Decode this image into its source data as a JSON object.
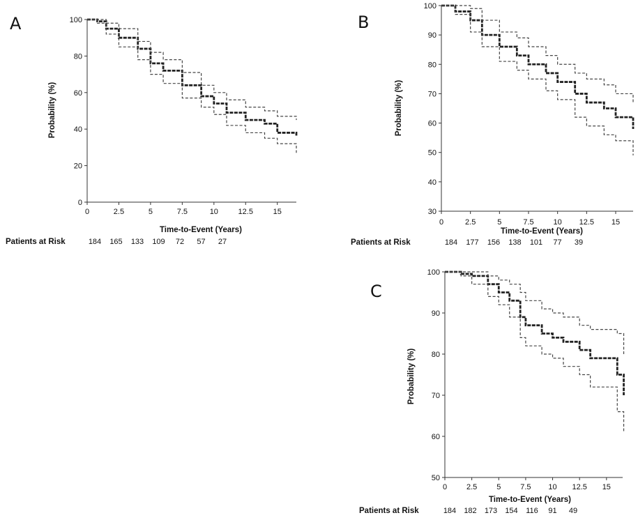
{
  "figure": {
    "risk_label": "Patients at Risk",
    "xlabel": "Time-to-Event (Years)",
    "ylabel": "Probability (%)"
  },
  "chart_data": [
    {
      "panel": "A",
      "type": "line",
      "xlim": [
        0,
        16.5
      ],
      "ylim": [
        0,
        100
      ],
      "xticks": [
        0,
        2.5,
        5,
        7.5,
        10,
        12.5,
        15
      ],
      "xtick_labels": [
        "0",
        "2.5",
        "5",
        "7.5",
        "10",
        "12.5",
        "15"
      ],
      "yticks": [
        0,
        20,
        40,
        60,
        80,
        100
      ],
      "ytick_labels": [
        "0",
        "20",
        "40",
        "60",
        "80",
        "100"
      ],
      "xlabel": "Time-to-Event (Years)",
      "ylabel": "Probability (%)",
      "risk_label": "Patients at Risk",
      "risk_times": [
        0,
        2.5,
        5,
        7.5,
        10,
        12.5,
        15
      ],
      "risk_values": [
        "184",
        "165",
        "133",
        "109",
        "72",
        "57",
        "27"
      ],
      "series": [
        {
          "name": "estimate",
          "x": [
            0,
            0.8,
            1.5,
            2.5,
            4,
            5,
            6,
            7.5,
            9,
            10,
            11,
            12.5,
            14,
            15,
            16.5
          ],
          "values": [
            100,
            99,
            95,
            90,
            84,
            76,
            72,
            64,
            58,
            54,
            49,
            45,
            43,
            38,
            36
          ]
        },
        {
          "name": "upper 95% CI",
          "x": [
            0,
            0.8,
            1.5,
            2.5,
            4,
            5,
            6,
            7.5,
            9,
            10,
            11,
            12.5,
            14,
            15,
            16.5
          ],
          "values": [
            100,
            100,
            98,
            95,
            88,
            82,
            78,
            71,
            64,
            60,
            56,
            52,
            50,
            47,
            45
          ]
        },
        {
          "name": "lower 95% CI",
          "x": [
            0,
            0.8,
            1.5,
            2.5,
            4,
            5,
            6,
            7.5,
            9,
            10,
            11,
            12.5,
            14,
            15,
            16.5
          ],
          "values": [
            100,
            98,
            92,
            85,
            78,
            70,
            65,
            57,
            52,
            48,
            42,
            38,
            35,
            32,
            27
          ]
        }
      ]
    },
    {
      "panel": "B",
      "type": "line",
      "xlim": [
        0,
        16.5
      ],
      "ylim": [
        30,
        100
      ],
      "xticks": [
        0,
        2.5,
        5,
        7.5,
        10,
        12.5,
        15
      ],
      "xtick_labels": [
        "0",
        "2.5",
        "5",
        "7.5",
        "10",
        "12.5",
        "15"
      ],
      "yticks": [
        30,
        40,
        50,
        60,
        70,
        80,
        90,
        100
      ],
      "ytick_labels": [
        "30",
        "40",
        "50",
        "60",
        "70",
        "80",
        "90",
        "100"
      ],
      "xlabel": "Time-to-Event (Years)",
      "ylabel": "Probability (%)",
      "risk_label": "Patients at Risk",
      "risk_times": [
        0,
        2.5,
        5,
        7.5,
        10,
        12.5,
        15
      ],
      "risk_values": [
        "184",
        "177",
        "156",
        "138",
        "101",
        "77",
        "39"
      ],
      "series": [
        {
          "name": "estimate",
          "x": [
            0,
            1.2,
            2.5,
            3.5,
            5,
            6.5,
            7.5,
            9,
            10,
            11.5,
            12.5,
            14,
            15,
            16.5
          ],
          "values": [
            100,
            98,
            95,
            90,
            86,
            83,
            80,
            77,
            74,
            70,
            67,
            65,
            62,
            58
          ]
        },
        {
          "name": "upper 95% CI",
          "x": [
            0,
            1.2,
            2.5,
            3.5,
            5,
            6.5,
            7.5,
            9,
            10,
            11.5,
            12.5,
            14,
            15,
            16.5
          ],
          "values": [
            100,
            100,
            99,
            95,
            91,
            89,
            86,
            83,
            80,
            77,
            75,
            73,
            70,
            67
          ]
        },
        {
          "name": "lower 95% CI",
          "x": [
            0,
            1.2,
            2.5,
            3.5,
            5,
            6.5,
            7.5,
            9,
            10,
            11.5,
            12.5,
            14,
            15,
            16.5
          ],
          "values": [
            100,
            97,
            91,
            86,
            81,
            78,
            75,
            71,
            68,
            62,
            59,
            56,
            54,
            49
          ]
        }
      ]
    },
    {
      "panel": "C",
      "type": "line",
      "xlim": [
        0,
        16.5
      ],
      "ylim": [
        50,
        100
      ],
      "xticks": [
        0,
        2.5,
        5,
        7.5,
        10,
        12.5,
        15
      ],
      "xtick_labels": [
        "0",
        "2.5",
        "5",
        "7.5",
        "10",
        "12.5",
        "15"
      ],
      "yticks": [
        50,
        60,
        70,
        80,
        90,
        100
      ],
      "ytick_labels": [
        "50",
        "60",
        "70",
        "80",
        "90",
        "100"
      ],
      "xlabel": "Time-to-Event (Years)",
      "ylabel": "Probability (%)",
      "risk_label": "Patients at Risk",
      "risk_times": [
        0,
        2.5,
        5,
        7.5,
        10,
        12.5,
        15
      ],
      "risk_values": [
        "184",
        "182",
        "173",
        "154",
        "116",
        "91",
        "49"
      ],
      "series": [
        {
          "name": "estimate",
          "x": [
            0,
            1.5,
            2.5,
            4,
            5,
            6,
            7,
            7.5,
            9,
            10,
            11,
            12.5,
            13.5,
            15,
            16,
            16.6
          ],
          "values": [
            100,
            99.5,
            99,
            97,
            95,
            93,
            89,
            87,
            85,
            84,
            83,
            81,
            79,
            79,
            75,
            70
          ]
        },
        {
          "name": "upper 95% CI",
          "x": [
            0,
            1.5,
            2.5,
            4,
            5,
            6,
            7,
            7.5,
            9,
            10,
            11,
            12.5,
            13.5,
            15,
            16,
            16.6
          ],
          "values": [
            100,
            100,
            100,
            99,
            98,
            97,
            95,
            93,
            91,
            90,
            89,
            87,
            86,
            86,
            85,
            80
          ]
        },
        {
          "name": "lower 95% CI",
          "x": [
            0,
            1.5,
            2.5,
            4,
            5,
            6,
            7,
            7.5,
            9,
            10,
            11,
            12.5,
            13.5,
            15,
            16,
            16.6
          ],
          "values": [
            100,
            99,
            97,
            94,
            92,
            89,
            84,
            82,
            80,
            79,
            77,
            75,
            72,
            72,
            66,
            61
          ]
        }
      ]
    }
  ]
}
